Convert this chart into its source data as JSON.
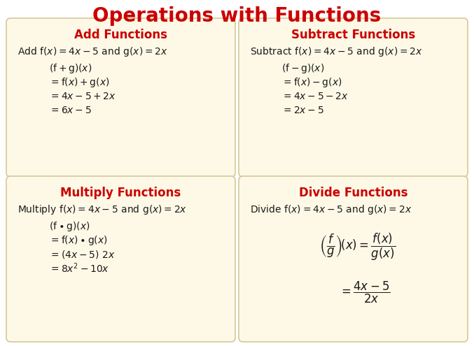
{
  "title": "Operations with Functions",
  "title_color": "#cc0000",
  "title_fontsize": 20,
  "background_color": "#ffffff",
  "box_bg_color": "#fef9e7",
  "box_edge_color": "#d4c89a",
  "header_color": "#cc0000",
  "text_color": "#1a1a1a",
  "panels": [
    {
      "header": "Add Functions",
      "intro": "$\\mathrm{Add\\ f}(x) = \\mathrm{4}x - \\mathrm{5\\ and\\ g}(x) = \\mathrm{2}x$",
      "lines": [
        "$(\\mathrm{f + g})(x)$",
        "$= \\mathrm{f}(x) + \\mathrm{g}(x)$",
        "$= \\mathrm{4}x - \\mathrm{5 + 2}x$",
        "$= \\mathrm{6}x - \\mathrm{5}$"
      ],
      "use_math": false
    },
    {
      "header": "Subtract Functions",
      "intro": "$\\mathrm{Subtract\\ f}(x) = \\mathrm{4}x - \\mathrm{5\\ and\\ g}(x) = \\mathrm{2}x$",
      "lines": [
        "$(\\mathrm{f} - \\mathrm{g})(x)$",
        "$= \\mathrm{f}(x) - \\mathrm{g}(x)$",
        "$= \\mathrm{4}x - \\mathrm{5} - \\mathrm{2}x$",
        "$= \\mathrm{2}x - \\mathrm{5}$"
      ],
      "use_math": false
    },
    {
      "header": "Multiply Functions",
      "intro": "$\\mathrm{Multiply\\ f}(x) = \\mathrm{4}x - \\mathrm{5\\ and\\ g}(x) = \\mathrm{2}x$",
      "lines": [
        "$(\\mathrm{f} \\bullet \\mathrm{g})(x)$",
        "$= \\mathrm{f}(x) \\bullet \\mathrm{g}(x)$",
        "$= (\\mathrm{4}x - \\mathrm{5})\\ \\mathrm{2}x$",
        "$= \\mathrm{8}x^\\mathrm{2} - \\mathrm{10}x$"
      ],
      "use_math": false
    },
    {
      "header": "Divide Functions",
      "intro": "$\\mathrm{Divide\\ f}(x) = \\mathrm{4}x - \\mathrm{5\\ and\\ g}(x) = \\mathrm{2}x$",
      "lines": [],
      "use_math": true
    }
  ]
}
